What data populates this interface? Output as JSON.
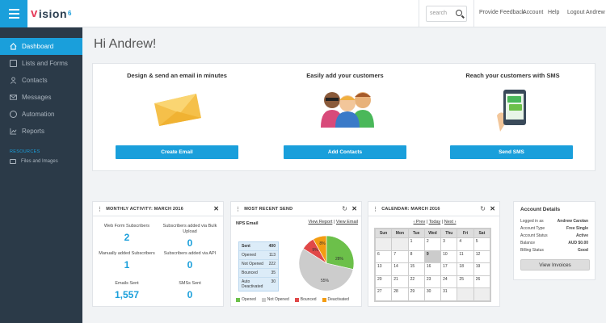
{
  "app": {
    "brand": "vision",
    "brand_v": "v",
    "brand_rest": "ision",
    "brand_mark": "6"
  },
  "topbar": {
    "search_placeholder": "search",
    "links": [
      "Provide Feedback",
      "Account",
      "Help",
      "Logout Andrew"
    ]
  },
  "sidebar": {
    "items": [
      {
        "label": "Dashboard",
        "icon": "home-icon",
        "active": true
      },
      {
        "label": "Lists and Forms",
        "icon": "list-icon"
      },
      {
        "label": "Contacts",
        "icon": "person-icon"
      },
      {
        "label": "Messages",
        "icon": "envelope-icon"
      },
      {
        "label": "Automation",
        "icon": "gear-icon"
      },
      {
        "label": "Reports",
        "icon": "chart-icon"
      }
    ],
    "resources_heading": "RESOURCES",
    "resources": [
      {
        "label": "Files and Images",
        "icon": "image-icon"
      }
    ]
  },
  "greeting": "Hi Andrew!",
  "hero": [
    {
      "title": "Design & send an email in minutes",
      "button": "Create Email"
    },
    {
      "title": "Easily add your customers",
      "button": "Add Contacts"
    },
    {
      "title": "Reach your customers with SMS",
      "button": "Send SMS"
    }
  ],
  "monthly": {
    "title": "MONTHLY ACTIVITY: MARCH 2016",
    "stats": [
      {
        "label": "Web Form Subscribers",
        "value": "2"
      },
      {
        "label": "Subscribers added via Bulk Upload",
        "value": "0"
      },
      {
        "label": "Manually added Subscribers",
        "value": "1"
      },
      {
        "label": "Subscribers added via API",
        "value": "0"
      },
      {
        "label": "Emails Sent",
        "value": "1,557"
      },
      {
        "label": "SMSs Sent",
        "value": "0"
      }
    ]
  },
  "recent": {
    "title": "MOST RECENT SEND",
    "name": "NPS Email",
    "view_report": "View Report",
    "sep": "|",
    "view_email": "View Email",
    "rows": [
      {
        "label": "Sent",
        "value": "400"
      },
      {
        "label": "Opened",
        "value": "113"
      },
      {
        "label": "Not Opened",
        "value": "222"
      },
      {
        "label": "Bounced",
        "value": "35"
      },
      {
        "label": "Auto Deactivated",
        "value": "30"
      }
    ],
    "pie_labels": [
      "28%",
      "55%",
      "9%",
      "8%"
    ],
    "legend": [
      "Opened",
      "Not Opened",
      "Bounced",
      "Deactivated"
    ],
    "colors": {
      "opened": "#6cc04a",
      "not_opened": "#cccccc",
      "bounced": "#e04848",
      "deactivated": "#f39c12"
    }
  },
  "calendar": {
    "title": "CALENDAR: MARCH 2016",
    "prev": "‹ Prev",
    "today": "Today",
    "next": "Next ›",
    "days": [
      "Sun",
      "Mon",
      "Tue",
      "Wed",
      "Thu",
      "Fri",
      "Sat"
    ],
    "cells": [
      "",
      "",
      "1",
      "2",
      "3",
      "4",
      "5",
      "6",
      "7",
      "8",
      "9",
      "10",
      "11",
      "12",
      "13",
      "14",
      "15",
      "16",
      "17",
      "18",
      "19",
      "20",
      "21",
      "22",
      "23",
      "24",
      "25",
      "26",
      "27",
      "28",
      "29",
      "30",
      "31",
      "",
      ""
    ],
    "today_date": "9"
  },
  "account": {
    "title": "Account Details",
    "rows": [
      {
        "label": "Logged in as",
        "value": "Andrew Carolan"
      },
      {
        "label": "Account Type",
        "value": "Free Single"
      },
      {
        "label": "Account Status",
        "value": "Active"
      },
      {
        "label": "Balance",
        "value": "AUD $0.00"
      },
      {
        "label": "Billing Status",
        "value": "Good"
      }
    ],
    "button": "View Invoices"
  }
}
